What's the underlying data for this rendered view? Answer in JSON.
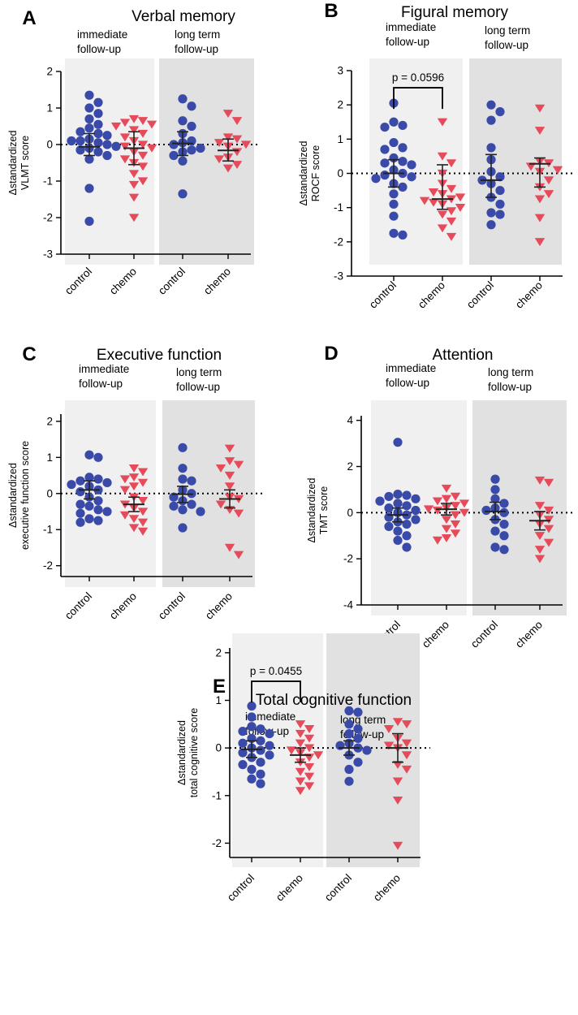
{
  "colors": {
    "control": "#3a4aa8",
    "chemo": "#e54b5b",
    "bg_immediate": "#f0f0f0",
    "bg_long": "#e1e1e1",
    "axis": "#000000"
  },
  "group_labels": {
    "immediate": [
      "immediate",
      "follow-up"
    ],
    "long": [
      "long term",
      "follow-up"
    ]
  },
  "categories": [
    "control",
    "chemo",
    "control",
    "chemo"
  ],
  "chart_data": [
    {
      "type": "scatter",
      "panel": "A",
      "title": "Verbal memory",
      "ylabel_lines": [
        "Δstandardized",
        "VLMT score"
      ],
      "ylim": [
        -3,
        2
      ],
      "yticks": [
        2,
        1,
        0,
        -1,
        -2,
        -3
      ],
      "categories": [
        "control",
        "chemo",
        "control",
        "chemo"
      ],
      "series": [
        {
          "name": "control (immediate follow-up)",
          "group": "immediate",
          "marker": "circle",
          "values": [
            1.35,
            1.15,
            1.0,
            0.85,
            0.7,
            0.55,
            0.45,
            0.35,
            0.3,
            0.25,
            0.15,
            0.1,
            0.1,
            0.05,
            0.0,
            -0.05,
            -0.1,
            -0.15,
            -0.2,
            -0.3,
            -0.4,
            -1.2,
            -2.1
          ],
          "mean": -0.06,
          "ci": [
            -0.3,
            0.3
          ]
        },
        {
          "name": "chemo (immediate follow-up)",
          "group": "immediate",
          "marker": "triangle",
          "values": [
            0.7,
            0.65,
            0.6,
            0.55,
            0.5,
            0.4,
            0.3,
            0.2,
            0.1,
            0.0,
            -0.05,
            -0.1,
            -0.2,
            -0.3,
            -0.4,
            -0.5,
            -0.6,
            -0.8,
            -1.0,
            -1.1,
            -1.45,
            -2.0
          ],
          "mean": -0.1,
          "ci": [
            -0.55,
            0.35
          ]
        },
        {
          "name": "control (long term follow-up)",
          "group": "long",
          "marker": "circle",
          "values": [
            1.25,
            1.05,
            0.65,
            0.5,
            0.3,
            0.1,
            0.05,
            0.0,
            -0.1,
            -0.15,
            -0.2,
            -0.3,
            -0.45,
            -1.35
          ],
          "mean": 0.03,
          "ci": [
            -0.3,
            0.35
          ]
        },
        {
          "name": "chemo (long term follow-up)",
          "group": "long",
          "marker": "triangle",
          "values": [
            0.85,
            0.65,
            0.2,
            0.15,
            0.05,
            0.0,
            -0.05,
            -0.2,
            -0.35,
            -0.4,
            -0.55,
            -0.65
          ],
          "mean": -0.16,
          "ci": [
            -0.45,
            0.15
          ]
        }
      ]
    },
    {
      "type": "scatter",
      "panel": "B",
      "title": "Figural memory",
      "ylabel_lines": [
        "Δstandardized",
        "ROCF score"
      ],
      "ylim": [
        -3,
        3
      ],
      "yticks": [
        3,
        2,
        1,
        0,
        -1,
        -2,
        -3
      ],
      "categories": [
        "control",
        "chemo",
        "control",
        "chemo"
      ],
      "significance": {
        "label": "p = 0.0596",
        "from": 0,
        "to": 1,
        "y": 2.5
      },
      "series": [
        {
          "name": "control (immediate follow-up)",
          "group": "immediate",
          "marker": "circle",
          "values": [
            2.05,
            1.5,
            1.4,
            1.35,
            0.9,
            0.75,
            0.7,
            0.45,
            0.35,
            0.3,
            0.25,
            0.1,
            0.0,
            -0.05,
            -0.1,
            -0.15,
            -0.3,
            -0.4,
            -0.6,
            -0.9,
            -1.25,
            -1.75,
            -1.8
          ],
          "mean": 0.0,
          "ci": [
            -0.4,
            0.4
          ]
        },
        {
          "name": "chemo (immediate follow-up)",
          "group": "immediate",
          "marker": "triangle",
          "values": [
            1.5,
            0.5,
            0.3,
            0.0,
            -0.3,
            -0.45,
            -0.55,
            -0.6,
            -0.7,
            -0.75,
            -0.8,
            -0.85,
            -0.9,
            -1.0,
            -1.1,
            -1.2,
            -1.4,
            -1.6,
            -1.85
          ],
          "mean": -0.75,
          "ci": [
            -1.05,
            0.25
          ]
        },
        {
          "name": "control (long term follow-up)",
          "group": "long",
          "marker": "circle",
          "values": [
            2.0,
            1.8,
            1.55,
            0.75,
            0.4,
            0.05,
            -0.1,
            -0.2,
            -0.3,
            -0.5,
            -0.7,
            -0.9,
            -1.15,
            -1.2,
            -1.5
          ],
          "mean": -0.2,
          "ci": [
            -0.7,
            0.55
          ]
        },
        {
          "name": "chemo (long term follow-up)",
          "group": "long",
          "marker": "triangle",
          "values": [
            1.9,
            1.25,
            0.35,
            0.3,
            0.2,
            0.1,
            0.05,
            -0.2,
            -0.4,
            -0.6,
            -0.75,
            -1.3,
            -2.0
          ],
          "mean": 0.28,
          "ci": [
            -0.4,
            0.45
          ]
        }
      ]
    },
    {
      "type": "scatter",
      "panel": "C",
      "title": "Executive function",
      "ylabel_lines": [
        "Δstandardized",
        "executive function score"
      ],
      "ylim": [
        -2.3,
        2.2
      ],
      "yticks": [
        2,
        1,
        0,
        -1,
        -2
      ],
      "categories": [
        "control",
        "chemo",
        "control",
        "chemo"
      ],
      "series": [
        {
          "name": "control (immediate follow-up)",
          "group": "immediate",
          "marker": "circle",
          "values": [
            1.07,
            1.0,
            0.45,
            0.4,
            0.35,
            0.3,
            0.25,
            0.2,
            0.1,
            0.05,
            -0.1,
            -0.2,
            -0.3,
            -0.35,
            -0.45,
            -0.5,
            -0.55,
            -0.7,
            -0.75,
            -0.8
          ],
          "mean": 0.1,
          "ci": [
            -0.15,
            0.35
          ]
        },
        {
          "name": "chemo (immediate follow-up)",
          "group": "immediate",
          "marker": "triangle",
          "values": [
            0.7,
            0.6,
            0.45,
            0.4,
            0.3,
            0.2,
            0.1,
            -0.1,
            -0.2,
            -0.3,
            -0.4,
            -0.5,
            -0.6,
            -0.7,
            -0.8,
            -0.95,
            -1.05
          ],
          "mean": -0.3,
          "ci": [
            -0.5,
            -0.1
          ]
        },
        {
          "name": "control (long term follow-up)",
          "group": "long",
          "marker": "circle",
          "values": [
            1.27,
            0.7,
            0.4,
            0.35,
            0.1,
            0.0,
            -0.1,
            -0.2,
            -0.3,
            -0.35,
            -0.45,
            -0.5,
            -0.95
          ],
          "mean": -0.02,
          "ci": [
            -0.25,
            0.2
          ]
        },
        {
          "name": "chemo (long term follow-up)",
          "group": "long",
          "marker": "triangle",
          "values": [
            1.25,
            0.9,
            0.8,
            0.7,
            0.5,
            0.2,
            -0.1,
            -0.15,
            -0.3,
            -0.45,
            -0.55,
            -1.5,
            -1.7
          ],
          "mean": -0.15,
          "ci": [
            -0.4,
            0.1
          ]
        }
      ]
    },
    {
      "type": "scatter",
      "panel": "D",
      "title": "Attention",
      "ylabel_lines": [
        "Δstandardized",
        "TMT score"
      ],
      "ylim": [
        -4,
        4.2
      ],
      "yticks": [
        4,
        2,
        0,
        -2,
        -4
      ],
      "categories": [
        "control",
        "chemo",
        "control",
        "chemo"
      ],
      "series": [
        {
          "name": "control (immediate follow-up)",
          "group": "immediate",
          "marker": "circle",
          "values": [
            3.05,
            0.8,
            0.75,
            0.7,
            0.6,
            0.5,
            0.4,
            0.3,
            0.2,
            0.1,
            0.0,
            -0.1,
            -0.2,
            -0.3,
            -0.4,
            -0.5,
            -0.6,
            -0.8,
            -1.0,
            -1.2,
            -1.5
          ],
          "mean": -0.1,
          "ci": [
            -0.4,
            0.2
          ]
        },
        {
          "name": "chemo (immediate follow-up)",
          "group": "immediate",
          "marker": "triangle",
          "values": [
            1.05,
            0.7,
            0.6,
            0.5,
            0.4,
            0.3,
            0.2,
            0.15,
            0.1,
            0.0,
            -0.1,
            -0.3,
            -0.5,
            -0.7,
            -0.9,
            -1.1,
            -1.2
          ],
          "mean": 0.15,
          "ci": [
            -0.1,
            0.4
          ]
        },
        {
          "name": "control (long term follow-up)",
          "group": "long",
          "marker": "circle",
          "values": [
            1.45,
            1.0,
            0.6,
            0.4,
            0.2,
            0.1,
            0.0,
            -0.3,
            -0.5,
            -0.8,
            -1.0,
            -1.5,
            -1.6
          ],
          "mean": 0.05,
          "ci": [
            -0.3,
            0.45
          ]
        },
        {
          "name": "chemo (long term follow-up)",
          "group": "long",
          "marker": "triangle",
          "values": [
            1.4,
            1.3,
            0.3,
            0.1,
            -0.1,
            -0.3,
            -0.5,
            -0.7,
            -1.0,
            -1.3,
            -1.6,
            -2.0
          ],
          "mean": -0.35,
          "ci": [
            -0.75,
            0.05
          ]
        }
      ]
    },
    {
      "type": "scatter",
      "panel": "E",
      "title": "Total cognitive function",
      "ylabel_lines": [
        "Δstandardized",
        "total cognitive score"
      ],
      "ylim": [
        -2.3,
        2.1
      ],
      "yticks": [
        2,
        1,
        0,
        -1,
        -2
      ],
      "categories": [
        "control",
        "chemo",
        "control",
        "chemo"
      ],
      "significance": {
        "label": "p = 0.0455",
        "from": 0,
        "to": 1,
        "y": 1.4
      },
      "series": [
        {
          "name": "control (immediate follow-up)",
          "group": "immediate",
          "marker": "circle",
          "values": [
            0.88,
            0.65,
            0.45,
            0.4,
            0.35,
            0.3,
            0.2,
            0.15,
            0.1,
            0.05,
            0.0,
            -0.05,
            -0.1,
            -0.15,
            -0.2,
            -0.3,
            -0.35,
            -0.45,
            -0.55,
            -0.65,
            -0.75
          ],
          "mean": -0.03,
          "ci": [
            -0.2,
            0.15
          ]
        },
        {
          "name": "chemo (immediate follow-up)",
          "group": "immediate",
          "marker": "triangle",
          "values": [
            0.5,
            0.4,
            0.3,
            0.2,
            0.1,
            0.0,
            -0.05,
            -0.1,
            -0.15,
            -0.2,
            -0.3,
            -0.4,
            -0.5,
            -0.6,
            -0.7,
            -0.8,
            -0.9
          ],
          "mean": -0.15,
          "ci": [
            -0.3,
            0.0
          ]
        },
        {
          "name": "control (long term follow-up)",
          "group": "long",
          "marker": "circle",
          "values": [
            0.78,
            0.75,
            0.5,
            0.4,
            0.3,
            0.2,
            0.1,
            0.05,
            0.0,
            -0.05,
            -0.15,
            -0.3,
            -0.45,
            -0.7
          ],
          "mean": 0.0,
          "ci": [
            -0.15,
            0.15
          ]
        },
        {
          "name": "chemo (long term follow-up)",
          "group": "long",
          "marker": "triangle",
          "values": [
            0.55,
            0.5,
            0.4,
            0.2,
            0.1,
            0.05,
            0.0,
            -0.15,
            -0.35,
            -0.45,
            -0.7,
            -1.1,
            -2.05
          ],
          "mean": 0.0,
          "ci": [
            -0.3,
            0.3
          ]
        }
      ]
    }
  ]
}
